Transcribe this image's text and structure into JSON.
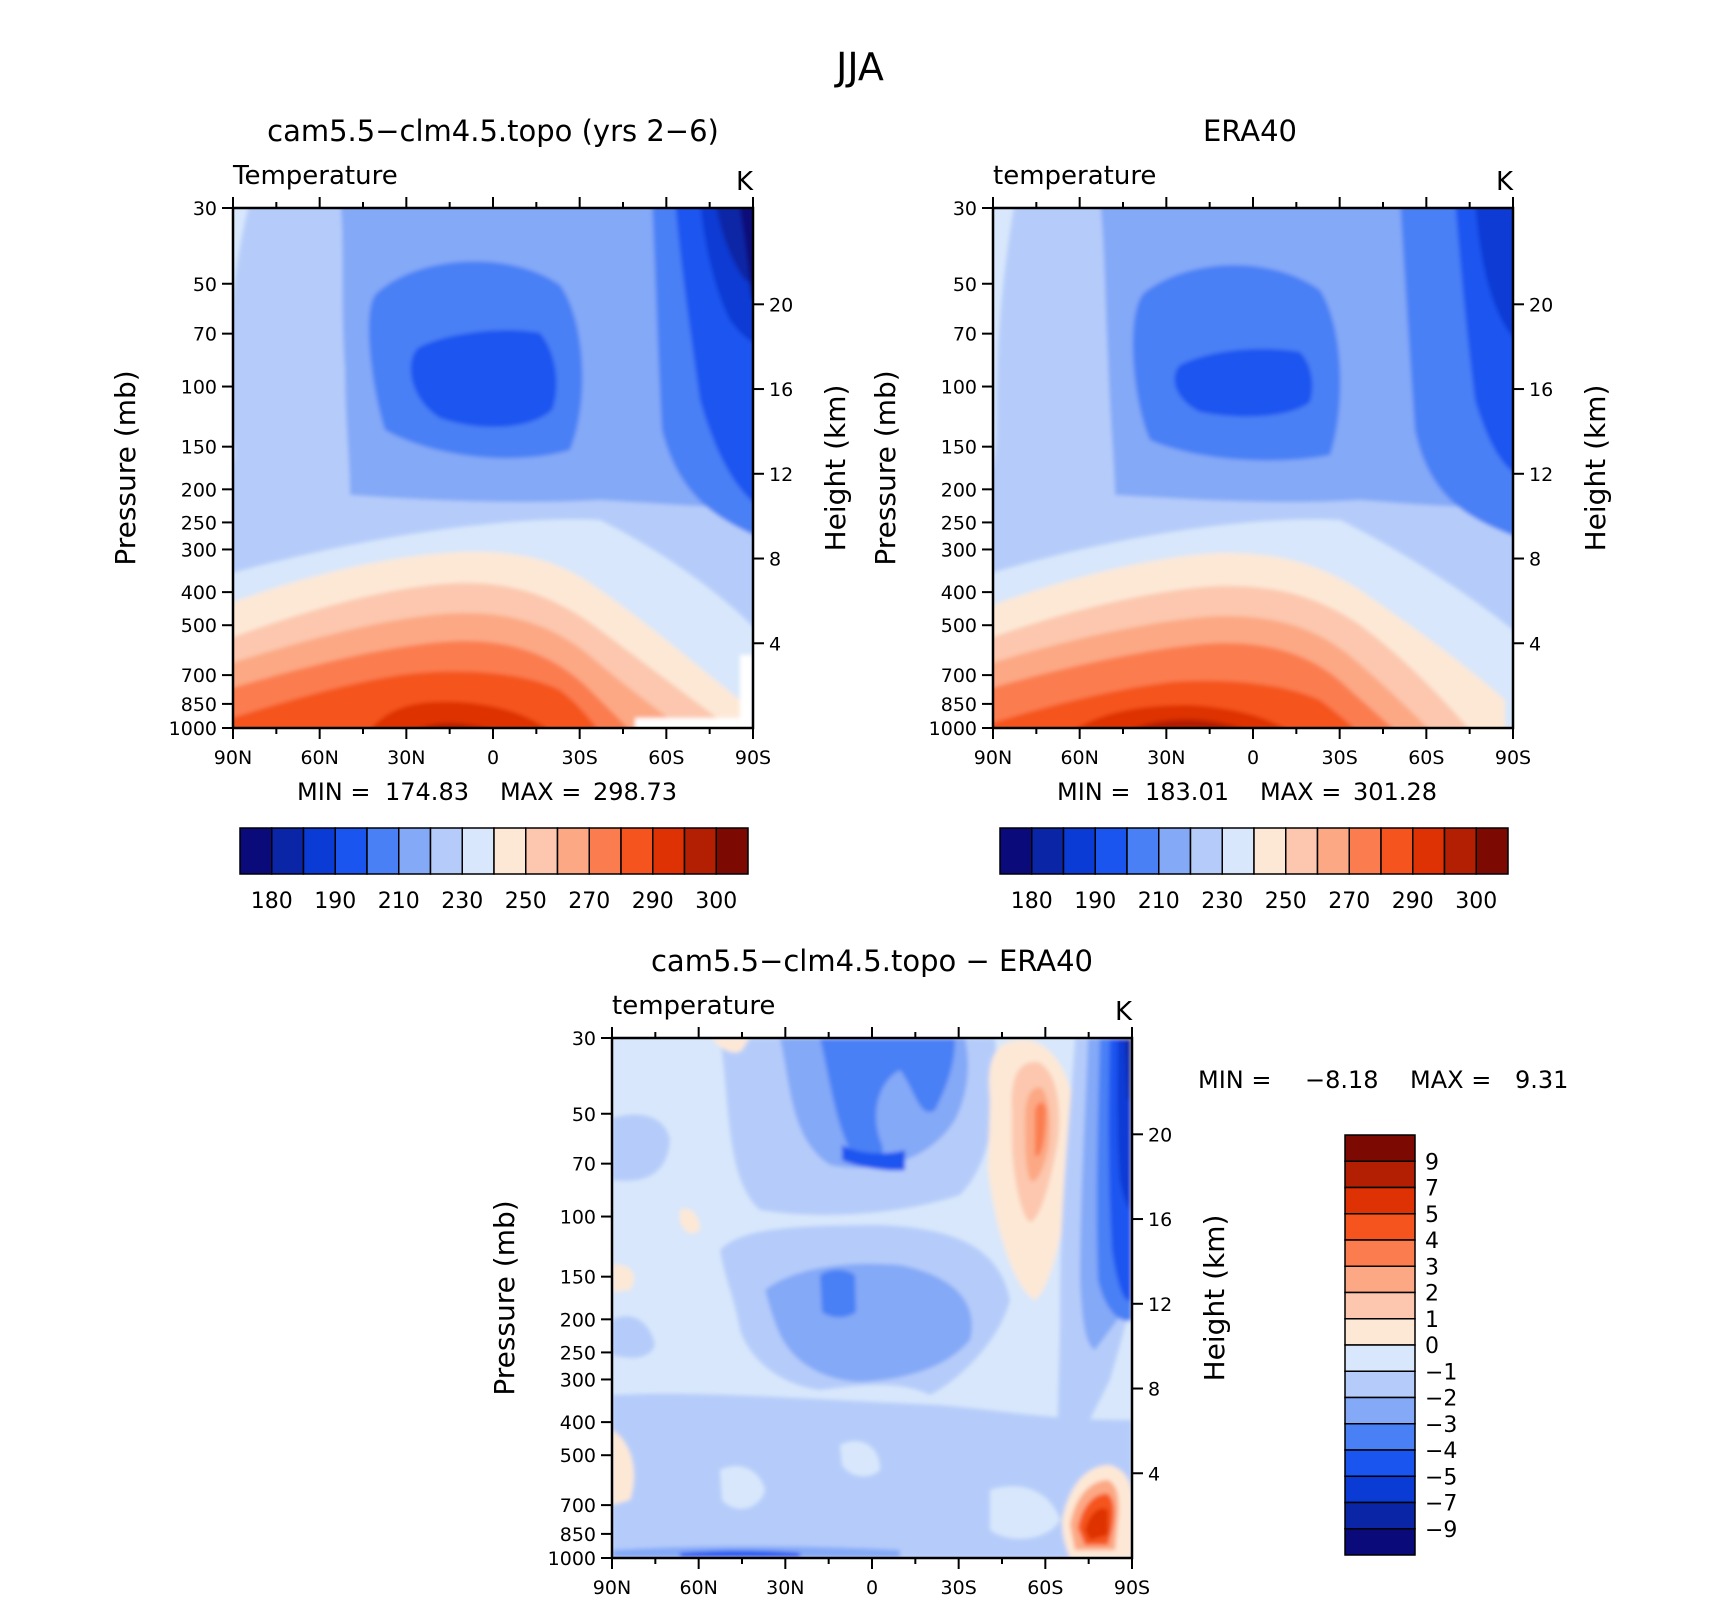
{
  "page_title": "JJA",
  "chart_data": [
    {
      "type": "heatmap",
      "id": "model",
      "title": "cam5.5−clm4.5.topo (yrs 2−6)",
      "variable_label": "Temperature",
      "units": "K",
      "ylabel": "Pressure (mb)",
      "y2label": "Height (km)",
      "x_ticks": [
        "90N",
        "60N",
        "30N",
        "0",
        "30S",
        "60S",
        "90S"
      ],
      "y_ticks": [
        30,
        50,
        70,
        100,
        150,
        200,
        250,
        300,
        400,
        500,
        700,
        850,
        1000
      ],
      "y2_ticks": [
        4,
        8,
        12,
        16,
        20
      ],
      "ylim": [
        1000,
        30
      ],
      "xlim": [
        90,
        -90
      ],
      "min_label": "MIN =",
      "min_value": "174.83",
      "max_label": "MAX =",
      "max_value": "298.73",
      "colorbar_labels": [
        "180",
        "190",
        "210",
        "230",
        "250",
        "270",
        "290",
        "300"
      ],
      "colorbar_colors": [
        "#0a0a7a",
        "#0a25a6",
        "#0a3bd4",
        "#1a55f0",
        "#4a80f5",
        "#84a9f7",
        "#b5ccfa",
        "#d8e7fb",
        "#fde8d6",
        "#fcc7ae",
        "#fca884",
        "#fb7d4f",
        "#f5541f",
        "#de3205",
        "#b31f03",
        "#7c0a02"
      ],
      "values_profile": [
        {
          "lat": 90,
          "p": 1000,
          "T": 270
        },
        {
          "lat": 0,
          "p": 1000,
          "T": 298
        },
        {
          "lat": -90,
          "p": 1000,
          "T": 250
        },
        {
          "lat": 0,
          "p": 100,
          "T": 193
        },
        {
          "lat": -90,
          "p": 30,
          "T": 178
        },
        {
          "lat": 90,
          "p": 30,
          "T": 232
        }
      ]
    },
    {
      "type": "heatmap",
      "id": "obs",
      "title": "ERA40",
      "variable_label": "temperature",
      "units": "K",
      "ylabel": "Pressure (mb)",
      "y2label": "Height (km)",
      "x_ticks": [
        "90N",
        "60N",
        "30N",
        "0",
        "30S",
        "60S",
        "90S"
      ],
      "y_ticks": [
        30,
        50,
        70,
        100,
        150,
        200,
        250,
        300,
        400,
        500,
        700,
        850,
        1000
      ],
      "y2_ticks": [
        4,
        8,
        12,
        16,
        20
      ],
      "ylim": [
        1000,
        30
      ],
      "xlim": [
        90,
        -90
      ],
      "min_label": "MIN =",
      "min_value": "183.01",
      "max_label": "MAX =",
      "max_value": "301.28",
      "colorbar_labels": [
        "180",
        "190",
        "210",
        "230",
        "250",
        "270",
        "290",
        "300"
      ],
      "colorbar_colors": [
        "#0a0a7a",
        "#0a25a6",
        "#0a3bd4",
        "#1a55f0",
        "#4a80f5",
        "#84a9f7",
        "#b5ccfa",
        "#d8e7fb",
        "#fde8d6",
        "#fcc7ae",
        "#fca884",
        "#fb7d4f",
        "#f5541f",
        "#de3205",
        "#b31f03",
        "#7c0a02"
      ]
    },
    {
      "type": "heatmap",
      "id": "diff",
      "title": "cam5.5−clm4.5.topo − ERA40",
      "variable_label": "temperature",
      "units": "K",
      "ylabel": "Pressure (mb)",
      "y2label": "Height (km)",
      "x_ticks": [
        "90N",
        "60N",
        "30N",
        "0",
        "30S",
        "60S",
        "90S"
      ],
      "y_ticks": [
        30,
        50,
        70,
        100,
        150,
        200,
        250,
        300,
        400,
        500,
        700,
        850,
        1000
      ],
      "y2_ticks": [
        4,
        8,
        12,
        16,
        20
      ],
      "ylim": [
        1000,
        30
      ],
      "xlim": [
        90,
        -90
      ],
      "min_label": "MIN =",
      "min_value": "−8.18",
      "max_label": "MAX =",
      "max_value": "9.31",
      "colorbar_labels": [
        "9",
        "7",
        "5",
        "4",
        "3",
        "2",
        "1",
        "0",
        "−1",
        "−2",
        "−3",
        "−4",
        "−5",
        "−7",
        "−9"
      ],
      "colorbar_colors": [
        "#7c0a02",
        "#b31f03",
        "#de3205",
        "#f5541f",
        "#fb7d4f",
        "#fca884",
        "#fcc7ae",
        "#fde8d6",
        "#d8e7fb",
        "#b5ccfa",
        "#84a9f7",
        "#4a80f5",
        "#1a55f0",
        "#0a3bd4",
        "#0a25a6",
        "#0a0a7a"
      ]
    }
  ]
}
